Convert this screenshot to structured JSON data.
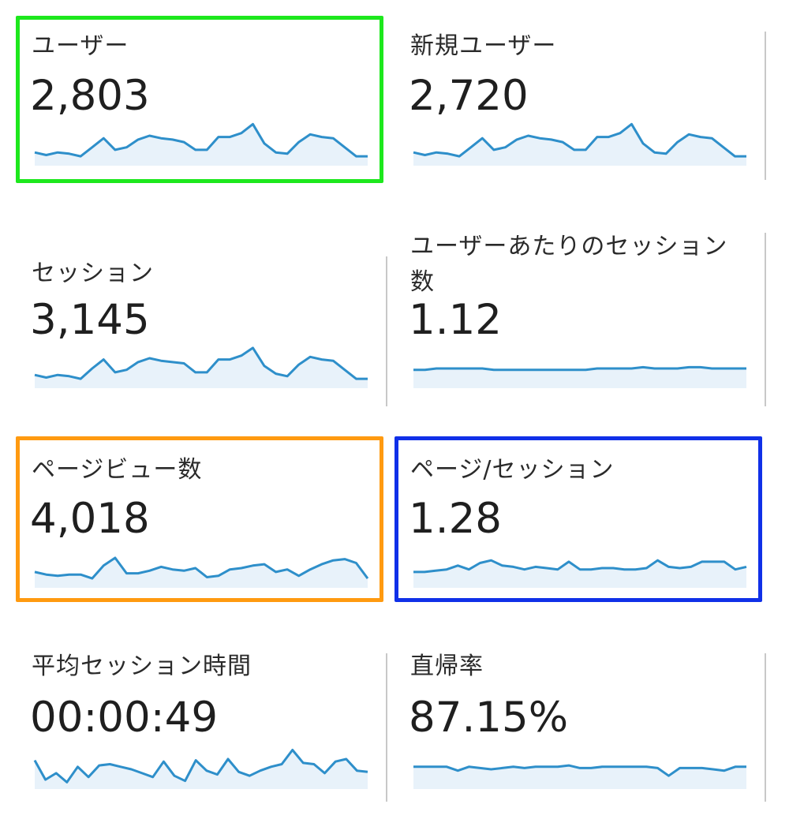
{
  "metrics": [
    {
      "label": "ユーザー",
      "value": "2,803",
      "series": [
        6,
        4,
        6,
        5,
        3,
        10,
        17,
        8,
        10,
        16,
        19,
        17,
        16,
        14,
        8,
        8,
        18,
        18,
        21,
        28,
        13,
        6,
        5,
        14,
        20,
        18,
        17,
        10,
        3,
        3
      ]
    },
    {
      "label": "新規ユーザー",
      "value": "2,720",
      "series": [
        6,
        4,
        6,
        5,
        3,
        10,
        17,
        8,
        10,
        16,
        19,
        17,
        16,
        14,
        8,
        8,
        18,
        18,
        21,
        28,
        13,
        6,
        5,
        14,
        20,
        18,
        17,
        10,
        3,
        3
      ]
    },
    {
      "label": "セッション",
      "value": "3,145",
      "series": [
        6,
        4,
        6,
        5,
        3,
        11,
        18,
        8,
        10,
        16,
        19,
        17,
        16,
        15,
        8,
        8,
        18,
        18,
        21,
        27,
        13,
        7,
        5,
        14,
        20,
        18,
        17,
        10,
        3,
        3
      ]
    },
    {
      "label": "ユーザーあたりのセッション数",
      "value": "1.12",
      "series": [
        10,
        10,
        11,
        11,
        11,
        11,
        11,
        10,
        10,
        10,
        10,
        10,
        10,
        10,
        10,
        10,
        11,
        11,
        11,
        11,
        12,
        11,
        11,
        11,
        12,
        12,
        11,
        11,
        11,
        11
      ]
    },
    {
      "label": "ページビュー数",
      "value": "4,018",
      "series": [
        8,
        6,
        5,
        6,
        6,
        3,
        13,
        19,
        7,
        7,
        9,
        12,
        10,
        9,
        11,
        4,
        5,
        10,
        11,
        13,
        14,
        8,
        10,
        5,
        10,
        14,
        17,
        18,
        15,
        3
      ]
    },
    {
      "label": "ページ/セッション",
      "value": "1.28",
      "series": [
        8,
        8,
        9,
        10,
        13,
        10,
        15,
        17,
        13,
        12,
        10,
        12,
        11,
        10,
        16,
        10,
        10,
        11,
        11,
        10,
        10,
        11,
        17,
        12,
        11,
        12,
        16,
        16,
        16,
        10,
        12
      ]
    },
    {
      "label": "平均セッション時間",
      "value": "00:00:49",
      "series": [
        18,
        3,
        8,
        1,
        13,
        5,
        14,
        15,
        13,
        11,
        8,
        5,
        17,
        6,
        2,
        18,
        10,
        7,
        19,
        9,
        6,
        10,
        13,
        15,
        26,
        16,
        15,
        8,
        17,
        19,
        10,
        9
      ]
    },
    {
      "label": "直帰率",
      "value": "87.15%",
      "series": [
        13,
        13,
        13,
        13,
        10,
        13,
        12,
        11,
        12,
        13,
        12,
        13,
        13,
        13,
        14,
        12,
        12,
        13,
        13,
        13,
        13,
        13,
        12,
        6,
        12,
        12,
        12,
        11,
        10,
        13,
        13
      ]
    }
  ],
  "colors": {
    "line": "#2e8fca",
    "fill": "#e8f2fa",
    "divider": "#c8c8c8",
    "highlight_green": "#1de81d",
    "highlight_orange": "#ff9a10",
    "highlight_blue": "#1030e8"
  }
}
